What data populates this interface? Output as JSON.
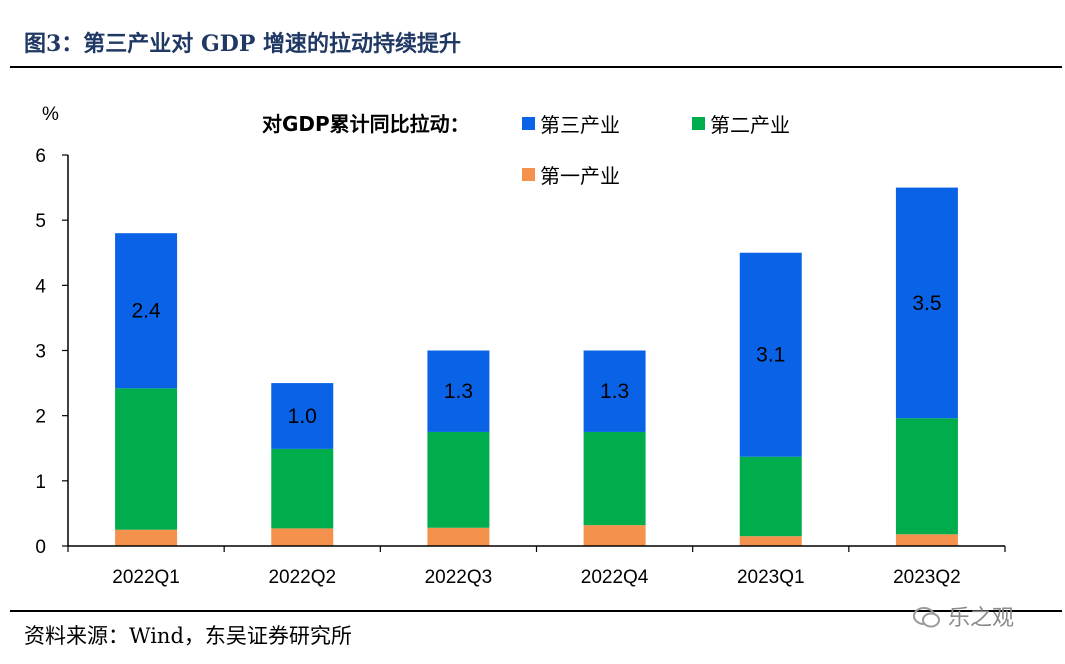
{
  "header": {
    "title": "图3：第三产业对 GDP 增速的拉动持续提升"
  },
  "footer": {
    "source": "资料来源：Wind，东吴证券研究所",
    "watermark": "乐之观"
  },
  "colors": {
    "tertiary": "#0a63e6",
    "secondary": "#00ad4c",
    "primary": "#f4924d",
    "title": "#1f3864"
  },
  "chart_data": {
    "type": "bar",
    "stacked": true,
    "categories": [
      "2022Q1",
      "2022Q2",
      "2022Q3",
      "2022Q4",
      "2023Q1",
      "2023Q2"
    ],
    "series": [
      {
        "name": "第一产业",
        "values": [
          0.25,
          0.27,
          0.28,
          0.32,
          0.15,
          0.18
        ]
      },
      {
        "name": "第二产业",
        "values": [
          2.17,
          1.22,
          1.47,
          1.43,
          1.22,
          1.78
        ]
      },
      {
        "name": "第三产业",
        "values": [
          2.38,
          1.01,
          1.25,
          1.25,
          3.13,
          3.54
        ]
      }
    ],
    "data_labels": [
      "2.4",
      "1.0",
      "1.3",
      "1.3",
      "3.1",
      "3.5"
    ],
    "ylabel": "%",
    "ylim": [
      0,
      6
    ],
    "yticks": [
      "0",
      "1",
      "2",
      "3",
      "4",
      "5",
      "6"
    ],
    "legend": {
      "title": "对GDP累计同比拉动：",
      "entries": [
        "第三产业",
        "第二产业",
        "第一产业"
      ],
      "placement": "top"
    },
    "grid": false
  }
}
